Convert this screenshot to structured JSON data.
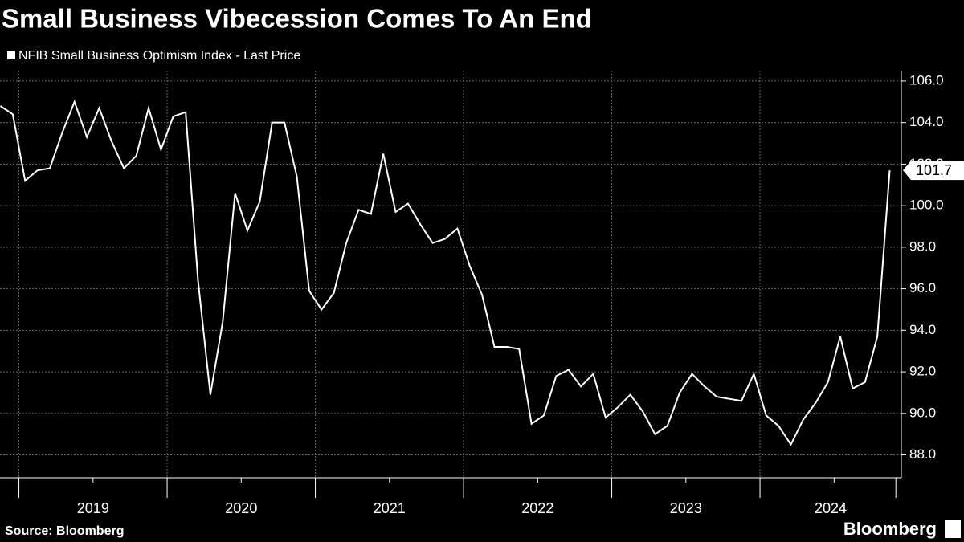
{
  "chart_data": {
    "type": "line",
    "title": "Small Business Vibecession Comes To An End",
    "source": "Source: Bloomberg",
    "brand": "Bloomberg",
    "series": [
      {
        "name": "NFIB Small Business Optimism Index - Last Price",
        "color": "#ffffff",
        "values": [
          104.8,
          104.4,
          101.2,
          101.7,
          101.8,
          103.5,
          105.0,
          103.3,
          104.7,
          103.1,
          101.8,
          102.4,
          104.7,
          102.7,
          104.3,
          104.5,
          96.4,
          90.9,
          94.4,
          100.6,
          98.8,
          100.2,
          104.0,
          104.0,
          101.4,
          95.9,
          95.0,
          95.8,
          98.2,
          99.8,
          99.6,
          102.5,
          99.7,
          100.1,
          99.1,
          98.2,
          98.4,
          98.9,
          97.1,
          95.7,
          93.2,
          93.2,
          93.1,
          89.5,
          89.9,
          91.8,
          92.1,
          91.3,
          91.9,
          89.8,
          90.3,
          90.9,
          90.1,
          89.0,
          89.4,
          91.0,
          91.9,
          91.3,
          90.8,
          90.7,
          90.6,
          91.9,
          89.9,
          89.4,
          88.5,
          89.7,
          90.5,
          91.5,
          93.7,
          91.2,
          91.5,
          93.7,
          101.7
        ]
      }
    ],
    "categories": [
      null,
      null,
      "2019",
      null,
      null,
      null,
      null,
      null,
      null,
      null,
      null,
      null,
      null,
      null,
      "2020",
      null,
      null,
      null,
      null,
      null,
      null,
      null,
      null,
      null,
      null,
      null,
      "2021",
      null,
      null,
      null,
      null,
      null,
      null,
      null,
      null,
      null,
      null,
      null,
      "2022",
      null,
      null,
      null,
      null,
      null,
      null,
      null,
      null,
      null,
      null,
      null,
      "2023",
      null,
      null,
      null,
      null,
      null,
      null,
      null,
      null,
      null,
      null,
      null,
      "2024",
      null,
      null,
      null,
      null,
      null,
      null,
      null,
      null,
      null,
      null
    ],
    "ylim": [
      86.9,
      106.5
    ],
    "yticks": [
      {
        "value": 88,
        "label": "88.0"
      },
      {
        "value": 90,
        "label": "90.0"
      },
      {
        "value": 92,
        "label": "92.0"
      },
      {
        "value": 94,
        "label": "94.0"
      },
      {
        "value": 96,
        "label": "96.0"
      },
      {
        "value": 98,
        "label": "98.0"
      },
      {
        "value": 100,
        "label": "100.0"
      },
      {
        "value": 102,
        "label": "102.0"
      },
      {
        "value": 104,
        "label": "104.0"
      },
      {
        "value": 106,
        "label": "106.0"
      }
    ],
    "grid": true
  }
}
